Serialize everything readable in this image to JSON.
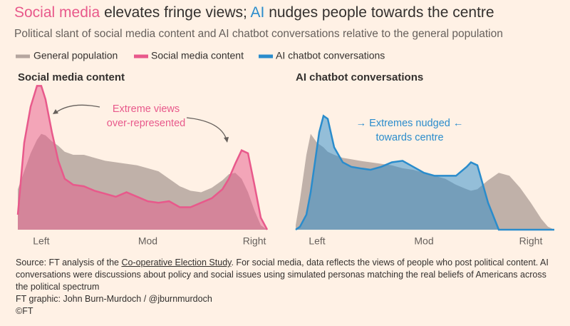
{
  "header": {
    "title": [
      "Social media",
      " elevates fringe views; ",
      "AI",
      " nudges people towards the centre"
    ],
    "subtitle": "Political slant of social media content and AI chatbot conversations relative to the general population"
  },
  "chart_data": [
    {
      "type": "area",
      "title": "Social media content",
      "annotation": [
        "Extreme views",
        "over-represented"
      ],
      "x": [
        -11,
        -8,
        -5,
        -2,
        0,
        2,
        5,
        8,
        11,
        15,
        20,
        25,
        30,
        35,
        40,
        45,
        50,
        55,
        60,
        65,
        70,
        75,
        80,
        85,
        88,
        91,
        94,
        97,
        100,
        103,
        106
      ],
      "series": [
        {
          "name": "General population",
          "color": "#b5a69f",
          "values": [
            27,
            39,
            51,
            60,
            64,
            63,
            59,
            56,
            52,
            50,
            50,
            48,
            46,
            45,
            44,
            43,
            41,
            39,
            34,
            29,
            26,
            25,
            28,
            33,
            37,
            38,
            34,
            25,
            13,
            3,
            0
          ]
        },
        {
          "name": "Social media content",
          "color": "#e8598b",
          "values": [
            10,
            58,
            82,
            96,
            96,
            87,
            65,
            46,
            34,
            30,
            29,
            26,
            24,
            22,
            25,
            22,
            19,
            18,
            19,
            15,
            15,
            18,
            21,
            27,
            34,
            44,
            53,
            51,
            30,
            8,
            0
          ]
        }
      ],
      "xlim": [
        -11,
        106
      ],
      "ylim": [
        0,
        100
      ],
      "xticks": [
        {
          "value": 0,
          "label": "Left"
        },
        {
          "value": 50,
          "label": "Mod"
        },
        {
          "value": 100,
          "label": "Right"
        }
      ]
    },
    {
      "type": "area",
      "title": "AI chatbot conversations",
      "annotation": [
        "→ Extremes nudged ←",
        "towards centre"
      ],
      "x": [
        -10,
        -8,
        -5,
        -3,
        -1,
        0,
        1,
        3,
        5,
        8,
        12,
        16,
        20,
        25,
        30,
        35,
        40,
        45,
        50,
        55,
        60,
        65,
        70,
        72,
        75,
        80,
        85,
        90,
        95,
        100,
        105,
        108,
        111
      ],
      "series": [
        {
          "name": "General population",
          "color": "#b5a69f",
          "values": [
            3,
            20,
            50,
            64,
            60,
            58,
            57,
            55,
            52,
            50,
            48,
            47,
            46,
            45,
            44,
            43,
            41,
            40,
            38,
            36,
            34,
            30,
            27,
            26,
            27,
            33,
            38,
            36,
            28,
            18,
            7,
            2,
            0
          ]
        },
        {
          "name": "AI chatbot conversations",
          "color": "#2a8ccc",
          "values": [
            0,
            2,
            10,
            25,
            45,
            55,
            65,
            76,
            74,
            55,
            45,
            42,
            41,
            40,
            42,
            45,
            46,
            42,
            38,
            36,
            36,
            36,
            42,
            45,
            43,
            18,
            0,
            0,
            0,
            0,
            0,
            0,
            0
          ]
        }
      ],
      "xlim": [
        -10,
        111
      ],
      "ylim": [
        0,
        100
      ],
      "xticks": [
        {
          "value": 0,
          "label": "Left"
        },
        {
          "value": 50,
          "label": "Mod"
        },
        {
          "value": 100,
          "label": "Right"
        }
      ]
    }
  ],
  "footer": {
    "source": [
      "Source: FT analysis of the ",
      "Co-operative Election Study",
      ". For social media, data reflects the views of people who post political content. AI conversations were discussions about policy and social issues using simulated personas matching the real beliefs of Americans across the political spectrum"
    ],
    "credit": "FT graphic: John Burn-Murdoch / @jburnmurdoch",
    "copyright": "©FT"
  }
}
